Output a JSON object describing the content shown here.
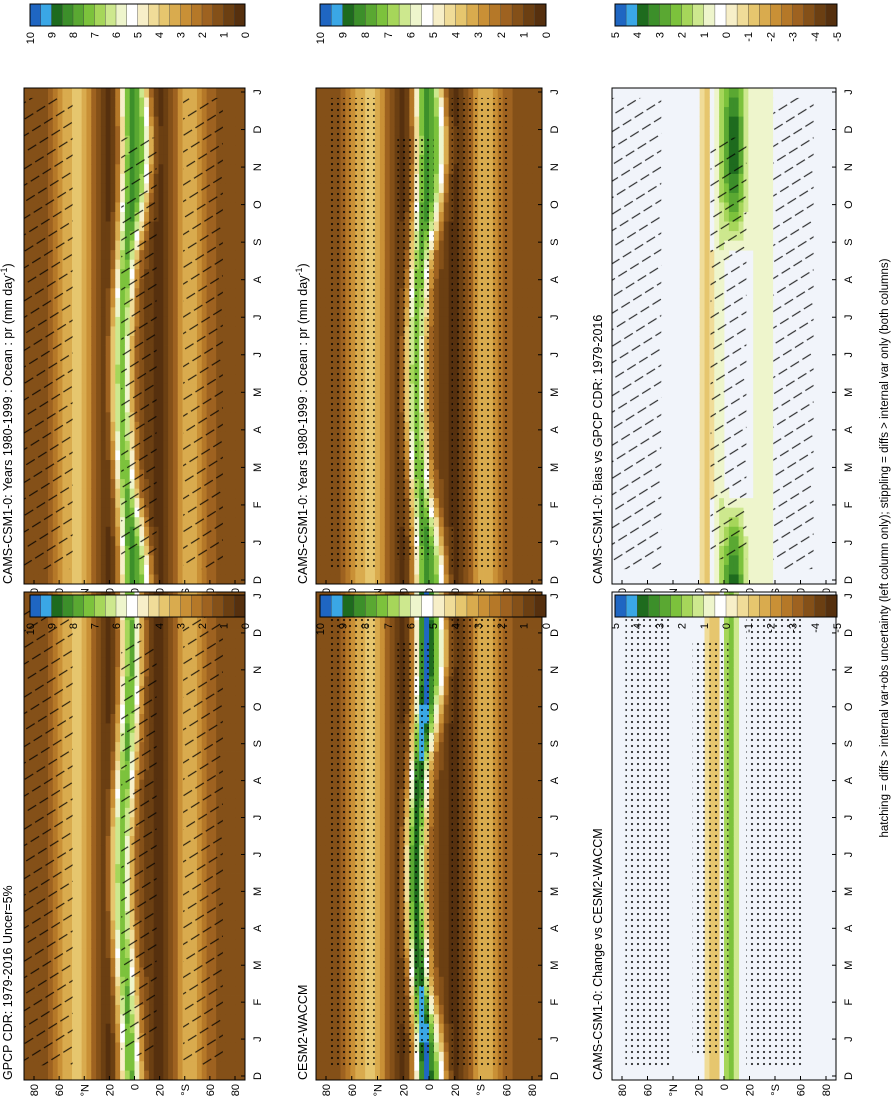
{
  "figure": {
    "footnote": "hatching = diffs > internal var+obs uncertainty (left column only); stippling = diffs > internal var only (both columns)"
  },
  "palettes": {
    "precip": [
      "#1f66c2",
      "#3aa7e6",
      "#1e6b1e",
      "#3c8f2a",
      "#5aa832",
      "#7cc23c",
      "#a6d65a",
      "#cde88e",
      "#eef5cc",
      "#ffffff",
      "#f7efc8",
      "#f0dc98",
      "#e6c66e",
      "#d9ab4e",
      "#c99036",
      "#b57828",
      "#9e6220",
      "#845018",
      "#6b3f12",
      "#56300e"
    ],
    "diff": [
      "#1f66c2",
      "#3aa7e6",
      "#1e6b1e",
      "#3c8f2a",
      "#5aa832",
      "#7cc23c",
      "#a6d65a",
      "#cde88e",
      "#eef5cc",
      "#ffffff",
      "#f7efc8",
      "#f0dc98",
      "#e6c66e",
      "#d9ab4e",
      "#c99036",
      "#b57828",
      "#9e6220",
      "#845018",
      "#6b3f12",
      "#56300e"
    ],
    "diff_background": "#f1f4fa"
  },
  "chart_data": [
    {
      "type": "heatmap",
      "title": "CAMS-CSM1-0: Years 1980-1999 : Ocean : pr (mm day",
      "title_sup": "-1",
      "title_tail": ")",
      "x_tick_labels": [
        "D",
        "J",
        "F",
        "M",
        "A",
        "M",
        "J",
        "J",
        "A",
        "S",
        "O",
        "N",
        "D",
        "J"
      ],
      "y_tick_labels": [
        "80",
        "60",
        "°N",
        "20",
        "0",
        "20",
        "°S",
        "60",
        "80"
      ],
      "ylim": [
        -90,
        90
      ],
      "colorbar": {
        "labels": [
          "10",
          "9",
          "8",
          "7",
          "6",
          "5",
          "4",
          "3",
          "2",
          "1",
          "0"
        ],
        "range": [
          0,
          10
        ]
      },
      "overlay": "hatching",
      "field": "model"
    },
    {
      "type": "heatmap",
      "title": "CAMS-CSM1-0: Years 1980-1999 : Ocean : pr (mm day",
      "title_sup": "-1",
      "title_tail": ")",
      "x_tick_labels": [
        "D",
        "J",
        "F",
        "M",
        "A",
        "M",
        "J",
        "J",
        "A",
        "S",
        "O",
        "N",
        "D",
        "J"
      ],
      "y_tick_labels": [
        "80",
        "60",
        "°N",
        "20",
        "0",
        "20",
        "°S",
        "60",
        "80"
      ],
      "ylim": [
        -90,
        90
      ],
      "colorbar": {
        "labels": [
          "10",
          "9",
          "8",
          "7",
          "6",
          "5",
          "4",
          "3",
          "2",
          "1",
          "0"
        ],
        "range": [
          0,
          10
        ]
      },
      "overlay": "stippling",
      "field": "model"
    },
    {
      "type": "heatmap",
      "title": "GPCP CDR: 1979-2016 Uncer=5%",
      "title_sup": "",
      "title_tail": "",
      "x_tick_labels": [
        "D",
        "J",
        "F",
        "M",
        "A",
        "M",
        "J",
        "J",
        "A",
        "S",
        "O",
        "N",
        "D",
        "J"
      ],
      "y_tick_labels": [
        "80",
        "60",
        "°N",
        "20",
        "0",
        "20",
        "°S",
        "60",
        "80"
      ],
      "ylim": [
        -90,
        90
      ],
      "colorbar": {
        "labels": [
          "10",
          "9",
          "8",
          "7",
          "6",
          "5",
          "4",
          "3",
          "2",
          "1",
          "0"
        ],
        "range": [
          0,
          10
        ]
      },
      "overlay": "hatching",
      "field": "obs"
    },
    {
      "type": "heatmap",
      "title": "CESM2-WACCM",
      "title_sup": "",
      "title_tail": "",
      "x_tick_labels": [
        "D",
        "J",
        "F",
        "M",
        "A",
        "M",
        "J",
        "J",
        "A",
        "S",
        "O",
        "N",
        "D",
        "J"
      ],
      "y_tick_labels": [
        "80",
        "60",
        "°N",
        "20",
        "0",
        "20",
        "°S",
        "60",
        "80"
      ],
      "ylim": [
        -90,
        90
      ],
      "colorbar": {
        "labels": [
          "10",
          "9",
          "8",
          "7",
          "6",
          "5",
          "4",
          "3",
          "2",
          "1",
          "0"
        ],
        "range": [
          0,
          10
        ]
      },
      "overlay": "stippling",
      "field": "model2"
    },
    {
      "type": "heatmap",
      "title": "CAMS-CSM1-0: Bias vs GPCP CDR: 1979-2016",
      "title_sup": "",
      "title_tail": "",
      "x_tick_labels": [
        "D",
        "J",
        "F",
        "M",
        "A",
        "M",
        "J",
        "J",
        "A",
        "S",
        "O",
        "N",
        "D",
        "J"
      ],
      "y_tick_labels": [
        "80",
        "60",
        "°N",
        "20",
        "0",
        "20",
        "°S",
        "60",
        "80"
      ],
      "ylim": [
        -90,
        90
      ],
      "colorbar": {
        "labels": [
          "5",
          "4",
          "3",
          "2",
          "1",
          "0",
          "-1",
          "-2",
          "-3",
          "-4",
          "-5"
        ],
        "range": [
          -5,
          5
        ]
      },
      "overlay": "hatching",
      "field": "bias"
    },
    {
      "type": "heatmap",
      "title": "CAMS-CSM1-0: Change vs CESM2-WACCM",
      "title_sup": "",
      "title_tail": "",
      "x_tick_labels": [
        "D",
        "J",
        "F",
        "M",
        "A",
        "M",
        "J",
        "J",
        "A",
        "S",
        "O",
        "N",
        "D",
        "J"
      ],
      "y_tick_labels": [
        "80",
        "60",
        "°N",
        "20",
        "0",
        "20",
        "°S",
        "60",
        "80"
      ],
      "ylim": [
        -90,
        90
      ],
      "colorbar": {
        "labels": [
          "5",
          "4",
          "3",
          "2",
          "1",
          "0",
          "-1",
          "-2",
          "-3",
          "-4",
          "-5"
        ],
        "range": [
          -5,
          5
        ]
      },
      "overlay": "stippling",
      "field": "change"
    }
  ]
}
